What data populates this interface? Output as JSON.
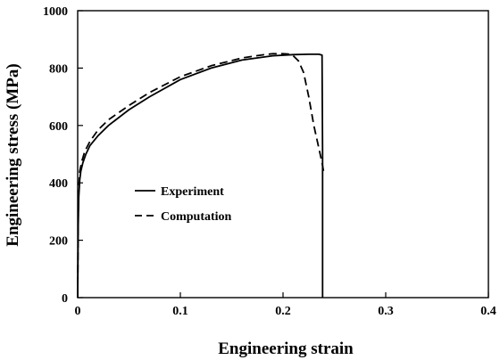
{
  "chart_data": {
    "type": "line",
    "xlabel": "Engineering strain",
    "ylabel": "Engineering stress (MPa)",
    "xlim": [
      0,
      0.4
    ],
    "ylim": [
      0,
      1000
    ],
    "x_ticks": [
      "0",
      "0.1",
      "0.2",
      "0.3",
      "0.4"
    ],
    "y_ticks": [
      "0",
      "200",
      "400",
      "600",
      "800",
      "1000"
    ],
    "grid": false,
    "legend_position": "center-left",
    "series": [
      {
        "name": "Experiment",
        "style": "solid",
        "color": "#000000",
        "x": [
          0,
          0.0005,
          0.001,
          0.002,
          0.003,
          0.005,
          0.008,
          0.012,
          0.02,
          0.03,
          0.05,
          0.07,
          0.1,
          0.13,
          0.16,
          0.19,
          0.21,
          0.225,
          0.235,
          0.238,
          0.2385,
          0.2385
        ],
        "y": [
          0,
          250,
          350,
          410,
          440,
          470,
          500,
          530,
          565,
          600,
          655,
          700,
          760,
          800,
          828,
          843,
          847,
          848,
          848,
          845,
          500,
          0
        ]
      },
      {
        "name": "Computation",
        "style": "dashed",
        "color": "#000000",
        "x": [
          0,
          0.0005,
          0.001,
          0.002,
          0.004,
          0.007,
          0.012,
          0.02,
          0.03,
          0.05,
          0.07,
          0.1,
          0.13,
          0.16,
          0.18,
          0.19,
          0.2,
          0.205,
          0.21,
          0.215,
          0.22,
          0.225,
          0.23,
          0.235,
          0.238,
          0.24
        ],
        "y": [
          0,
          280,
          380,
          440,
          475,
          510,
          545,
          585,
          620,
          670,
          715,
          770,
          808,
          835,
          846,
          850,
          850,
          849,
          843,
          825,
          785,
          700,
          600,
          520,
          470,
          430
        ]
      }
    ]
  }
}
